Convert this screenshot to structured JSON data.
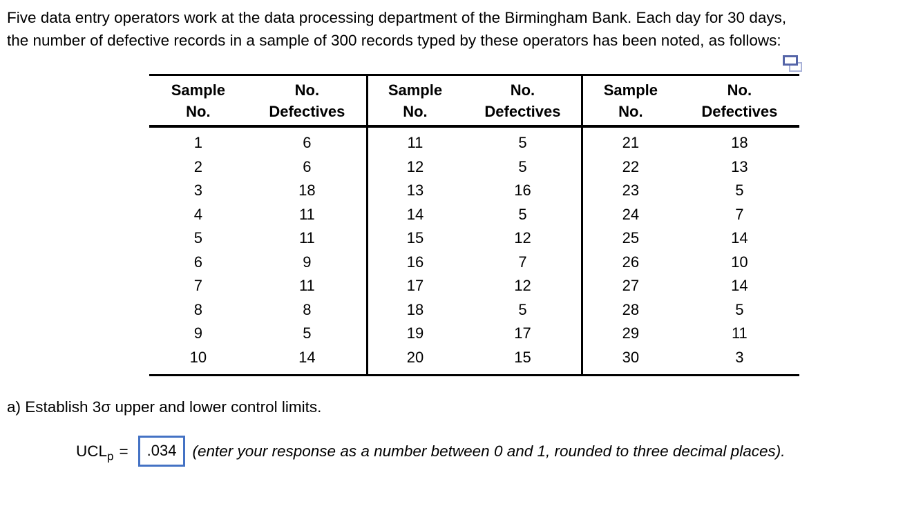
{
  "intro": {
    "lines": [
      "Five data entry operators work at the data processing department of the Birmingham Bank. Each day for 30 days,",
      "the number of defective records in a sample of 300 records typed by these operators has been noted, as follows:"
    ]
  },
  "icons": {
    "copy_icon": "copy-icon",
    "copy_front_color": "#5565a8",
    "copy_back_color": "#a9b2d8"
  },
  "table": {
    "header": {
      "col1": "Sample\nNo.",
      "col2": "No.\nDefectives"
    },
    "groups": [
      {
        "rows": [
          [
            "1",
            "6"
          ],
          [
            "2",
            "6"
          ],
          [
            "3",
            "18"
          ],
          [
            "4",
            "11"
          ],
          [
            "5",
            "11"
          ],
          [
            "6",
            "9"
          ],
          [
            "7",
            "11"
          ],
          [
            "8",
            "8"
          ],
          [
            "9",
            "5"
          ],
          [
            "10",
            "14"
          ]
        ]
      },
      {
        "rows": [
          [
            "11",
            "5"
          ],
          [
            "12",
            "5"
          ],
          [
            "13",
            "16"
          ],
          [
            "14",
            "5"
          ],
          [
            "15",
            "12"
          ],
          [
            "16",
            "7"
          ],
          [
            "17",
            "12"
          ],
          [
            "18",
            "5"
          ],
          [
            "19",
            "17"
          ],
          [
            "20",
            "15"
          ]
        ]
      },
      {
        "rows": [
          [
            "21",
            "18"
          ],
          [
            "22",
            "13"
          ],
          [
            "23",
            "5"
          ],
          [
            "24",
            "7"
          ],
          [
            "25",
            "14"
          ],
          [
            "26",
            "10"
          ],
          [
            "27",
            "14"
          ],
          [
            "28",
            "5"
          ],
          [
            "29",
            "11"
          ],
          [
            "30",
            "3"
          ]
        ]
      }
    ]
  },
  "question": {
    "text": "a) Establish 3σ upper and lower control limits."
  },
  "answer": {
    "label": "UCL",
    "subscript": "p",
    "equals": "=",
    "value": ".034",
    "note": "(enter your response as a number between 0 and 1, rounded to three decimal places).",
    "box_border_color": "#4472c4"
  }
}
